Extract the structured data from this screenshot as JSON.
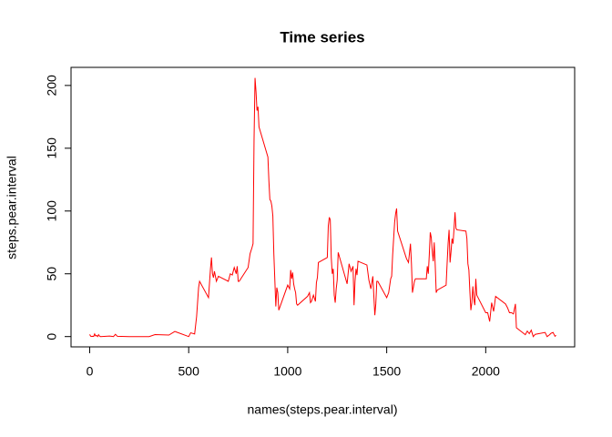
{
  "chart_data": {
    "type": "line",
    "title": "Time series",
    "x_label": "names(steps.pear.interval)",
    "y_label": "steps.pear.interval",
    "x": [
      0,
      5,
      10,
      15,
      20,
      25,
      30,
      35,
      40,
      45,
      50,
      55,
      100,
      110,
      120,
      130,
      140,
      200,
      230,
      300,
      330,
      400,
      430,
      440,
      500,
      510,
      530,
      540,
      550,
      555,
      600,
      610,
      615,
      620,
      625,
      630,
      640,
      650,
      700,
      710,
      720,
      730,
      740,
      745,
      750,
      755,
      800,
      810,
      820,
      825,
      830,
      835,
      840,
      845,
      850,
      855,
      900,
      905,
      910,
      915,
      920,
      925,
      930,
      935,
      940,
      945,
      950,
      955,
      1000,
      1010,
      1015,
      1020,
      1025,
      1030,
      1035,
      1040,
      1045,
      1050,
      1100,
      1110,
      1115,
      1120,
      1130,
      1140,
      1145,
      1150,
      1155,
      1200,
      1205,
      1210,
      1215,
      1220,
      1225,
      1230,
      1235,
      1240,
      1245,
      1250,
      1255,
      1300,
      1310,
      1320,
      1330,
      1335,
      1340,
      1345,
      1350,
      1355,
      1400,
      1410,
      1420,
      1430,
      1440,
      1445,
      1450,
      1455,
      1500,
      1510,
      1520,
      1525,
      1530,
      1540,
      1545,
      1550,
      1555,
      1600,
      1610,
      1620,
      1625,
      1630,
      1640,
      1645,
      1700,
      1705,
      1710,
      1715,
      1720,
      1725,
      1730,
      1735,
      1740,
      1745,
      1750,
      1755,
      1800,
      1805,
      1810,
      1815,
      1820,
      1825,
      1830,
      1835,
      1840,
      1845,
      1850,
      1855,
      1900,
      1905,
      1910,
      1915,
      1920,
      1925,
      1930,
      1935,
      1940,
      1945,
      1950,
      1955,
      2000,
      2010,
      2020,
      2030,
      2040,
      2050,
      2100,
      2110,
      2120,
      2130,
      2140,
      2150,
      2155,
      2200,
      2210,
      2220,
      2230,
      2240,
      2250,
      2300,
      2310,
      2320,
      2330,
      2340,
      2350,
      2355
    ],
    "series": [
      {
        "name": "steps.pear.interval",
        "color": "#ff0000",
        "values": [
          1.7,
          0.3,
          0.1,
          0.2,
          0.1,
          2.1,
          0.5,
          0.9,
          0,
          1.5,
          0.3,
          0,
          0.4,
          0.2,
          0,
          1.8,
          0.2,
          0,
          0,
          0,
          1.6,
          1.2,
          4.1,
          3.5,
          0,
          3,
          2.1,
          16,
          39,
          44,
          31,
          54,
          63,
          50,
          47,
          52,
          44,
          48,
          44,
          50,
          49,
          55,
          50,
          56,
          44,
          44,
          55,
          66,
          71,
          74,
          156,
          206,
          195,
          180,
          183,
          167,
          143,
          124,
          109,
          108,
          104,
          96,
          66,
          45,
          24,
          39,
          35,
          21,
          41,
          38,
          53,
          46,
          51,
          42,
          38,
          35,
          26,
          25,
          32,
          35,
          27,
          28,
          33,
          28,
          43,
          47,
          59,
          63,
          88,
          95,
          93,
          63,
          50,
          54,
          33,
          27,
          38,
          45,
          67,
          42,
          58,
          52,
          56,
          25,
          44,
          54,
          49,
          60,
          57,
          45,
          38,
          48,
          17,
          26,
          44,
          44,
          31,
          35,
          46,
          48,
          65,
          91,
          98,
          102,
          84,
          62,
          59,
          74,
          58,
          35,
          44,
          46,
          46,
          56,
          50,
          65,
          83,
          79,
          68,
          60,
          75,
          57,
          35,
          37,
          41,
          58,
          74,
          85,
          59,
          68,
          78,
          74,
          86,
          99,
          86,
          85,
          84,
          78,
          58,
          53,
          36,
          21,
          27,
          40,
          30,
          25,
          46,
          33,
          19,
          19,
          12,
          27,
          20,
          32,
          26,
          23,
          19,
          19,
          18,
          26,
          7,
          1.5,
          4.4,
          2.3,
          5.1,
          0,
          1.8,
          3.3,
          0,
          1.1,
          2.6,
          3.3,
          0.2,
          1.1
        ]
      }
    ],
    "xlim": [
      -94.2,
      2449.2
    ],
    "ylim": [
      -8.2,
      214.4
    ],
    "xticks": [
      0,
      500,
      1000,
      1500,
      2000
    ],
    "yticks": [
      0,
      50,
      100,
      150,
      200
    ]
  }
}
